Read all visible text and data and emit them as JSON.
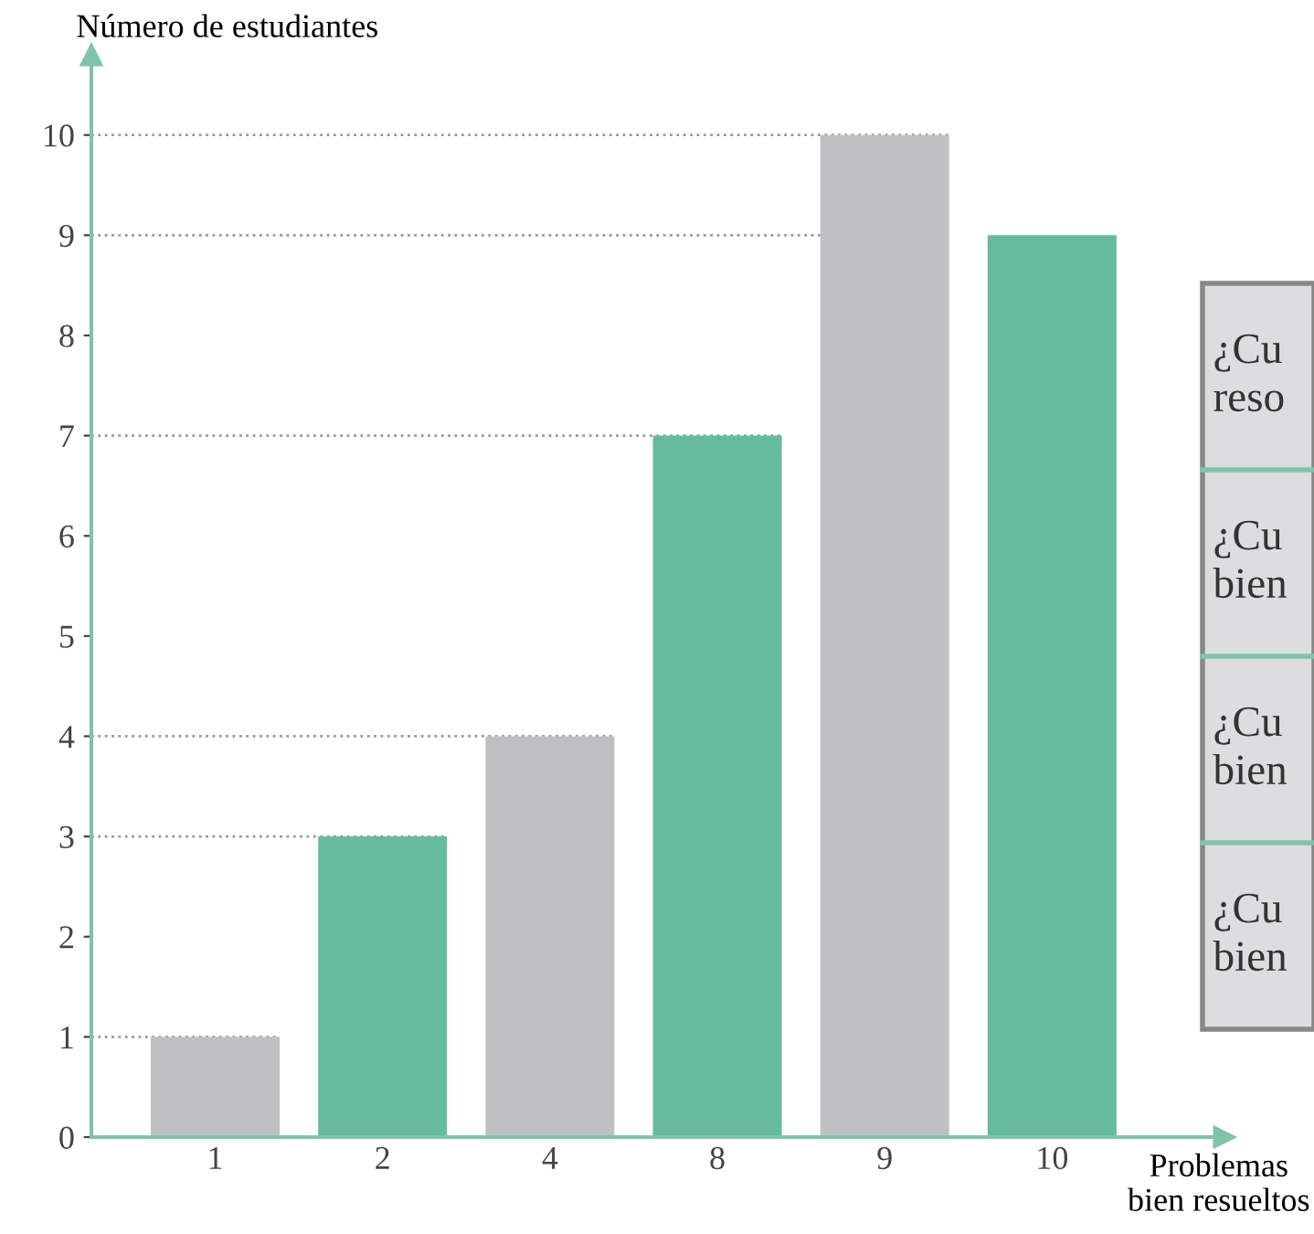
{
  "chart_data": {
    "type": "bar",
    "xlabel": "Problemas\nbien resueltos",
    "ylabel": "Número de estudiantes",
    "categories": [
      "1",
      "2",
      "4",
      "8",
      "9",
      "10"
    ],
    "values": [
      1,
      3,
      4,
      7,
      10,
      9
    ],
    "colors": [
      "#bfc0c2",
      "#66bb9e",
      "#bfc0c2",
      "#66bb9e",
      "#bfc0c2",
      "#66bb9e"
    ],
    "ylim": [
      0,
      10.8
    ],
    "yticks": [
      0,
      1,
      2,
      3,
      4,
      5,
      6,
      7,
      8,
      9,
      10
    ],
    "ref_lines": [
      {
        "axis": "y",
        "value": 1,
        "color": "#999999",
        "line_style": "dotted"
      },
      {
        "axis": "y",
        "value": 3,
        "color": "#999999",
        "line_style": "dotted"
      },
      {
        "axis": "y",
        "value": 4,
        "color": "#999999",
        "line_style": "dotted"
      },
      {
        "axis": "y",
        "value": 7,
        "color": "#999999",
        "line_style": "dotted"
      },
      {
        "axis": "y",
        "value": 9,
        "color": "#999999",
        "line_style": "dotted"
      },
      {
        "axis": "y",
        "value": 10,
        "color": "#999999",
        "line_style": "dotted"
      }
    ],
    "annotations": [
      "¿Cu\nreso",
      "¿Cu\nbien",
      "¿Cu\nbien",
      "¿Cu\nbien"
    ],
    "grid": false,
    "legend": false
  }
}
